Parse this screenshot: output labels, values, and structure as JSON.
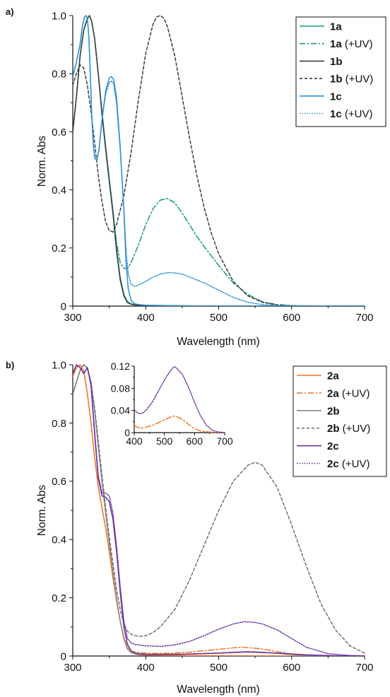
{
  "chart_data": [
    {
      "panel": "a)",
      "type": "line",
      "xlabel": "Wavelength (nm)",
      "ylabel": "Norm. Abs",
      "xlim": [
        300,
        700
      ],
      "ylim": [
        0,
        1.0
      ],
      "xticks": [
        "300",
        "400",
        "500",
        "600",
        "700"
      ],
      "yticks": [
        "0",
        "0.2",
        "0.4",
        "0.6",
        "0.8",
        "1.0"
      ],
      "grid": false,
      "legend_position": "top-right",
      "series": [
        {
          "name": "1a",
          "label_bold": "1a",
          "label_suffix": "",
          "color": "#1a9a80",
          "dash": "solid",
          "x": [
            300,
            305,
            310,
            315,
            320,
            323,
            326,
            330,
            335,
            340,
            345,
            350,
            355,
            360,
            365,
            370,
            375,
            380,
            385,
            390,
            400,
            450,
            500,
            600,
            700
          ],
          "y": [
            0.6,
            0.72,
            0.86,
            0.95,
            0.99,
            1.0,
            0.98,
            0.92,
            0.8,
            0.67,
            0.55,
            0.44,
            0.33,
            0.2,
            0.1,
            0.04,
            0.015,
            0.008,
            0.005,
            0.003,
            0.002,
            0.001,
            0.0,
            0.0,
            0.0
          ]
        },
        {
          "name": "1a (+UV)",
          "label_bold": "1a",
          "label_suffix": " (+UV)",
          "color": "#1a9a80",
          "dash": "dashdot",
          "x": [
            300,
            305,
            310,
            315,
            320,
            323,
            326,
            330,
            335,
            340,
            345,
            350,
            355,
            360,
            365,
            370,
            375,
            380,
            390,
            400,
            410,
            420,
            430,
            440,
            450,
            460,
            470,
            480,
            500,
            520,
            540,
            560,
            580,
            600,
            620,
            650,
            700
          ],
          "y": [
            0.6,
            0.72,
            0.86,
            0.95,
            0.99,
            1.0,
            0.98,
            0.92,
            0.8,
            0.67,
            0.55,
            0.44,
            0.33,
            0.22,
            0.15,
            0.13,
            0.13,
            0.15,
            0.21,
            0.28,
            0.335,
            0.365,
            0.37,
            0.355,
            0.32,
            0.28,
            0.24,
            0.205,
            0.14,
            0.08,
            0.04,
            0.015,
            0.005,
            0.002,
            0.001,
            0.0,
            0.0
          ]
        },
        {
          "name": "1b",
          "label_bold": "1b",
          "label_suffix": "",
          "color": "#3c3c3c",
          "dash": "solid",
          "x": [
            300,
            305,
            310,
            315,
            320,
            323,
            326,
            330,
            335,
            340,
            345,
            350,
            355,
            360,
            365,
            370,
            375,
            380,
            385,
            390,
            400,
            450,
            500,
            600,
            700
          ],
          "y": [
            0.6,
            0.72,
            0.86,
            0.95,
            0.99,
            1.0,
            0.98,
            0.92,
            0.8,
            0.66,
            0.54,
            0.43,
            0.32,
            0.19,
            0.09,
            0.035,
            0.012,
            0.006,
            0.004,
            0.003,
            0.002,
            0.001,
            0.0,
            0.0,
            0.0
          ]
        },
        {
          "name": "1b (+UV)",
          "label_bold": "1b",
          "label_suffix": " (+UV)",
          "color": "#3a3a48",
          "dash": "dash",
          "x": [
            300,
            305,
            310,
            315,
            320,
            325,
            330,
            335,
            340,
            345,
            350,
            355,
            360,
            370,
            380,
            390,
            400,
            410,
            415,
            420,
            425,
            430,
            440,
            450,
            460,
            470,
            480,
            490,
            500,
            520,
            540,
            560,
            580,
            600,
            620,
            650,
            700
          ],
          "y": [
            0.76,
            0.8,
            0.83,
            0.82,
            0.76,
            0.67,
            0.56,
            0.45,
            0.36,
            0.29,
            0.26,
            0.255,
            0.28,
            0.38,
            0.53,
            0.71,
            0.87,
            0.97,
            0.995,
            1.0,
            0.99,
            0.96,
            0.86,
            0.72,
            0.58,
            0.45,
            0.34,
            0.25,
            0.18,
            0.085,
            0.035,
            0.013,
            0.004,
            0.001,
            0.0,
            0.0,
            0.0
          ]
        },
        {
          "name": "1c",
          "label_bold": "1c",
          "label_suffix": "",
          "color": "#2b8ed6",
          "dash": "solid",
          "x": [
            300,
            305,
            310,
            313,
            316,
            318,
            320,
            322,
            324,
            326,
            328,
            330,
            333,
            336,
            340,
            345,
            350,
            353,
            356,
            360,
            365,
            370,
            373,
            376,
            380,
            385,
            390,
            400,
            450,
            500,
            600,
            700
          ],
          "y": [
            0.79,
            0.84,
            0.9,
            0.96,
            0.995,
            1.0,
            0.99,
            0.93,
            0.8,
            0.66,
            0.56,
            0.51,
            0.5,
            0.54,
            0.64,
            0.74,
            0.785,
            0.79,
            0.78,
            0.72,
            0.55,
            0.33,
            0.15,
            0.06,
            0.02,
            0.008,
            0.005,
            0.003,
            0.001,
            0.0,
            0.0,
            0.0
          ]
        },
        {
          "name": "1c (+UV)",
          "label_bold": "1c",
          "label_suffix": " (+UV)",
          "color": "#2b8ed6",
          "dash": "dot",
          "x": [
            300,
            305,
            310,
            313,
            316,
            318,
            320,
            322,
            324,
            326,
            328,
            330,
            333,
            336,
            340,
            345,
            350,
            353,
            356,
            360,
            365,
            370,
            373,
            376,
            380,
            385,
            390,
            400,
            410,
            420,
            430,
            440,
            450,
            460,
            480,
            500,
            520,
            540,
            560,
            580,
            600,
            650,
            700
          ],
          "y": [
            0.79,
            0.84,
            0.9,
            0.96,
            0.995,
            1.0,
            0.99,
            0.93,
            0.8,
            0.66,
            0.56,
            0.51,
            0.5,
            0.54,
            0.64,
            0.73,
            0.77,
            0.775,
            0.765,
            0.7,
            0.54,
            0.34,
            0.19,
            0.11,
            0.075,
            0.068,
            0.072,
            0.085,
            0.1,
            0.11,
            0.115,
            0.114,
            0.11,
            0.1,
            0.08,
            0.055,
            0.03,
            0.013,
            0.005,
            0.002,
            0.001,
            0.0,
            0.0
          ]
        }
      ]
    },
    {
      "panel": "b)",
      "type": "line",
      "xlabel": "Wavelength (nm)",
      "ylabel": "Norm. Abs",
      "xlim": [
        300,
        700
      ],
      "ylim": [
        0,
        1.0
      ],
      "xticks": [
        "300",
        "400",
        "500",
        "600",
        "700"
      ],
      "yticks": [
        "0",
        "0.2",
        "0.4",
        "0.6",
        "0.8",
        "1.0"
      ],
      "grid": false,
      "legend_position": "top-right",
      "series": [
        {
          "name": "2a",
          "label_bold": "2a",
          "label_suffix": "",
          "color": "#f07a2a",
          "dash": "solid",
          "x": [
            300,
            305,
            310,
            315,
            320,
            325,
            330,
            335,
            340,
            345,
            350,
            355,
            360,
            365,
            370,
            375,
            380,
            385,
            390,
            400,
            450,
            500,
            600,
            700
          ],
          "y": [
            0.96,
            0.99,
            1.0,
            0.98,
            0.9,
            0.8,
            0.68,
            0.58,
            0.51,
            0.44,
            0.36,
            0.27,
            0.19,
            0.12,
            0.06,
            0.025,
            0.012,
            0.007,
            0.005,
            0.003,
            0.002,
            0.001,
            0.0,
            0.0
          ]
        },
        {
          "name": "2a (+UV)",
          "label_bold": "2a",
          "label_suffix": " (+UV)",
          "color": "#f07a2a",
          "dash": "dashdot",
          "x": [
            300,
            305,
            310,
            315,
            320,
            325,
            330,
            335,
            340,
            345,
            350,
            355,
            360,
            365,
            370,
            375,
            380,
            390,
            400,
            420,
            440,
            460,
            480,
            500,
            520,
            530,
            540,
            560,
            580,
            600,
            620,
            650,
            700
          ],
          "y": [
            0.96,
            0.99,
            1.0,
            0.98,
            0.9,
            0.8,
            0.68,
            0.58,
            0.51,
            0.44,
            0.36,
            0.27,
            0.19,
            0.12,
            0.065,
            0.03,
            0.017,
            0.012,
            0.01,
            0.009,
            0.01,
            0.013,
            0.018,
            0.023,
            0.028,
            0.03,
            0.029,
            0.024,
            0.015,
            0.007,
            0.003,
            0.001,
            0.0
          ]
        },
        {
          "name": "2b",
          "label_bold": "2b",
          "label_suffix": "",
          "color": "#888888",
          "dash": "solid",
          "x": [
            300,
            305,
            310,
            315,
            320,
            325,
            330,
            335,
            340,
            345,
            350,
            355,
            360,
            365,
            370,
            375,
            380,
            385,
            390,
            400,
            450,
            500,
            520,
            540,
            560,
            580,
            600,
            620,
            650,
            700
          ],
          "y": [
            0.9,
            0.94,
            0.98,
            1.0,
            0.99,
            0.94,
            0.84,
            0.72,
            0.6,
            0.49,
            0.39,
            0.29,
            0.2,
            0.12,
            0.06,
            0.025,
            0.012,
            0.008,
            0.006,
            0.005,
            0.006,
            0.01,
            0.013,
            0.015,
            0.013,
            0.009,
            0.005,
            0.002,
            0.0,
            0.0
          ]
        },
        {
          "name": "2b (+UV)",
          "label_bold": "2b",
          "label_suffix": " (+UV)",
          "color": "#707080",
          "dash": "dash",
          "x": [
            300,
            305,
            310,
            315,
            320,
            325,
            330,
            335,
            340,
            345,
            350,
            355,
            360,
            365,
            370,
            375,
            380,
            385,
            390,
            395,
            400,
            410,
            420,
            440,
            460,
            480,
            500,
            520,
            540,
            550,
            560,
            580,
            600,
            620,
            640,
            660,
            680,
            700
          ],
          "y": [
            0.9,
            0.94,
            0.98,
            1.0,
            0.99,
            0.94,
            0.85,
            0.74,
            0.62,
            0.51,
            0.41,
            0.32,
            0.23,
            0.16,
            0.11,
            0.085,
            0.075,
            0.07,
            0.068,
            0.068,
            0.07,
            0.08,
            0.1,
            0.16,
            0.26,
            0.38,
            0.5,
            0.6,
            0.655,
            0.665,
            0.655,
            0.58,
            0.45,
            0.31,
            0.18,
            0.09,
            0.035,
            0.01
          ]
        },
        {
          "name": "2c",
          "label_bold": "2c",
          "label_suffix": "",
          "color": "#6a2fa0",
          "dash": "solid",
          "x": [
            300,
            305,
            310,
            315,
            320,
            325,
            330,
            335,
            340,
            345,
            350,
            355,
            360,
            365,
            370,
            375,
            380,
            385,
            390,
            400,
            450,
            500,
            540,
            580,
            620,
            660,
            700
          ],
          "y": [
            0.97,
            1.0,
            0.99,
            0.97,
            0.99,
            0.93,
            0.76,
            0.61,
            0.55,
            0.545,
            0.53,
            0.47,
            0.36,
            0.22,
            0.1,
            0.04,
            0.018,
            0.01,
            0.008,
            0.006,
            0.006,
            0.01,
            0.014,
            0.01,
            0.004,
            0.001,
            0.0
          ]
        },
        {
          "name": "2c (+UV)",
          "label_bold": "2c",
          "label_suffix": " (+UV)",
          "color": "#6a2fa0",
          "dash": "dot",
          "x": [
            300,
            305,
            310,
            315,
            320,
            325,
            330,
            335,
            340,
            345,
            350,
            355,
            360,
            365,
            370,
            375,
            380,
            385,
            390,
            400,
            420,
            440,
            460,
            480,
            500,
            520,
            535,
            550,
            560,
            580,
            600,
            620,
            650,
            680,
            700
          ],
          "y": [
            0.97,
            1.0,
            0.99,
            0.97,
            0.99,
            0.93,
            0.77,
            0.62,
            0.56,
            0.56,
            0.55,
            0.49,
            0.38,
            0.24,
            0.12,
            0.06,
            0.045,
            0.04,
            0.038,
            0.035,
            0.033,
            0.038,
            0.05,
            0.07,
            0.092,
            0.11,
            0.118,
            0.115,
            0.11,
            0.09,
            0.06,
            0.03,
            0.008,
            0.002,
            0.0
          ]
        }
      ],
      "inset": {
        "xlim": [
          400,
          700
        ],
        "ylim": [
          0,
          0.12
        ],
        "xticks": [
          "400",
          "500",
          "600",
          "700"
        ],
        "yticks": [
          "0",
          "0.04",
          "0.08",
          "0.12"
        ],
        "series": [
          {
            "name": "2a (+UV)",
            "color": "#f07a2a",
            "dash": "dashdot",
            "x": [
              400,
              420,
              440,
              460,
              480,
              500,
              520,
              530,
              540,
              560,
              580,
              600,
              620,
              650,
              680,
              700
            ],
            "y": [
              0.012,
              0.008,
              0.01,
              0.013,
              0.018,
              0.023,
              0.028,
              0.03,
              0.029,
              0.024,
              0.015,
              0.007,
              0.003,
              0.001,
              0.0,
              0.0
            ]
          },
          {
            "name": "2c (+UV)",
            "color": "#6a2fa0",
            "dash": "dot",
            "x": [
              400,
              410,
              420,
              430,
              440,
              460,
              480,
              500,
              520,
              530,
              535,
              540,
              560,
              580,
              600,
              620,
              640,
              660,
              680,
              700
            ],
            "y": [
              0.041,
              0.036,
              0.034,
              0.036,
              0.041,
              0.055,
              0.075,
              0.095,
              0.112,
              0.118,
              0.119,
              0.117,
              0.105,
              0.082,
              0.055,
              0.03,
              0.013,
              0.004,
              0.001,
              0.0
            ]
          }
        ]
      }
    }
  ]
}
